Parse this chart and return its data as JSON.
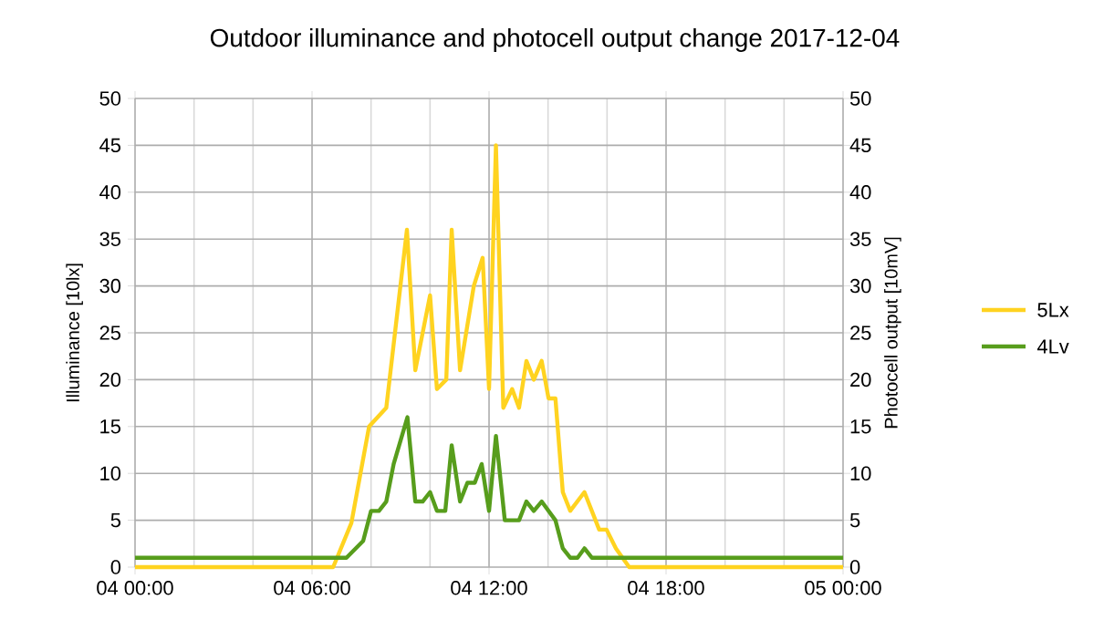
{
  "chart_data": {
    "type": "line",
    "title": "Outdoor  illuminance and photocell output change 2017-12-04",
    "ylabel": "Illuminance [10lx]",
    "y2label": "Photocell output [10mV]",
    "xlim": [
      "2017-12-04T00:00",
      "2017-12-05T00:00"
    ],
    "xticks": [
      {
        "value": "2017-12-04T00:00",
        "label": "04 00:00"
      },
      {
        "value": "2017-12-04T02:00",
        "label": null
      },
      {
        "value": "2017-12-04T04:00",
        "label": null
      },
      {
        "value": "2017-12-04T06:00",
        "label": "04 06:00"
      },
      {
        "value": "2017-12-04T08:00",
        "label": null
      },
      {
        "value": "2017-12-04T10:00",
        "label": null
      },
      {
        "value": "2017-12-04T12:00",
        "label": "04 12:00"
      },
      {
        "value": "2017-12-04T14:00",
        "label": null
      },
      {
        "value": "2017-12-04T16:00",
        "label": null
      },
      {
        "value": "2017-12-04T18:00",
        "label": "04 18:00"
      },
      {
        "value": "2017-12-04T20:00",
        "label": null
      },
      {
        "value": "2017-12-04T22:00",
        "label": null
      },
      {
        "value": "2017-12-05T00:00",
        "label": "05 00:00"
      }
    ],
    "ylim": [
      0,
      50
    ],
    "yticks": [
      0,
      5,
      10,
      15,
      20,
      25,
      30,
      35,
      40,
      45,
      50
    ],
    "y2lim": [
      0,
      50
    ],
    "y2ticks": [
      0,
      5,
      10,
      15,
      20,
      25,
      30,
      35,
      40,
      45,
      50
    ],
    "grid": true,
    "legend": "right",
    "marker": "none",
    "line_style": "solid",
    "series": [
      {
        "name": "5Lx",
        "color": "#ffd320",
        "x": [
          "2017-12-04T00:00",
          "2017-12-04T06:43",
          "2017-12-04T07:20",
          "2017-12-04T07:56",
          "2017-12-04T08:31",
          "2017-12-04T09:13",
          "2017-12-04T09:30",
          "2017-12-04T10:00",
          "2017-12-04T10:14",
          "2017-12-04T10:33",
          "2017-12-04T10:44",
          "2017-12-04T11:01",
          "2017-12-04T11:29",
          "2017-12-04T11:47",
          "2017-12-04T12:00",
          "2017-12-04T12:14",
          "2017-12-04T12:29",
          "2017-12-04T12:47",
          "2017-12-04T13:01",
          "2017-12-04T13:16",
          "2017-12-04T13:31",
          "2017-12-04T13:47",
          "2017-12-04T14:01",
          "2017-12-04T14:15",
          "2017-12-04T14:30",
          "2017-12-04T14:45",
          "2017-12-04T15:14",
          "2017-12-04T15:44",
          "2017-12-04T15:59",
          "2017-12-04T16:18",
          "2017-12-04T16:45",
          "2017-12-05T00:00"
        ],
        "values": [
          0,
          0,
          4.7,
          15,
          17,
          36,
          21,
          29,
          19,
          20,
          36,
          21,
          30,
          33,
          19,
          45,
          17,
          19,
          17,
          22,
          20,
          22,
          18,
          18,
          8,
          6,
          8,
          4,
          4,
          2,
          0,
          0
        ]
      },
      {
        "name": "4Lv",
        "color": "#579d1c",
        "axis": "y2",
        "x": [
          "2017-12-04T00:00",
          "2017-12-04T07:10",
          "2017-12-04T07:44",
          "2017-12-04T08:00",
          "2017-12-04T08:16",
          "2017-12-04T08:31",
          "2017-12-04T08:46",
          "2017-12-04T09:14",
          "2017-12-04T09:30",
          "2017-12-04T09:45",
          "2017-12-04T10:00",
          "2017-12-04T10:14",
          "2017-12-04T10:31",
          "2017-12-04T10:44",
          "2017-12-04T11:01",
          "2017-12-04T11:16",
          "2017-12-04T11:31",
          "2017-12-04T11:45",
          "2017-12-04T12:00",
          "2017-12-04T12:14",
          "2017-12-04T12:32",
          "2017-12-04T13:01",
          "2017-12-04T13:16",
          "2017-12-04T13:31",
          "2017-12-04T13:47",
          "2017-12-04T14:15",
          "2017-12-04T14:30",
          "2017-12-04T14:45",
          "2017-12-04T15:00",
          "2017-12-04T15:14",
          "2017-12-04T15:29",
          "2017-12-05T00:00"
        ],
        "values": [
          1,
          1,
          2.8,
          6,
          6,
          7,
          11,
          16,
          7,
          7,
          8,
          6,
          6,
          13,
          7,
          9,
          9,
          11,
          6,
          14,
          5,
          5,
          7,
          6,
          7,
          5,
          2,
          1,
          1,
          2,
          1,
          1
        ]
      }
    ]
  }
}
